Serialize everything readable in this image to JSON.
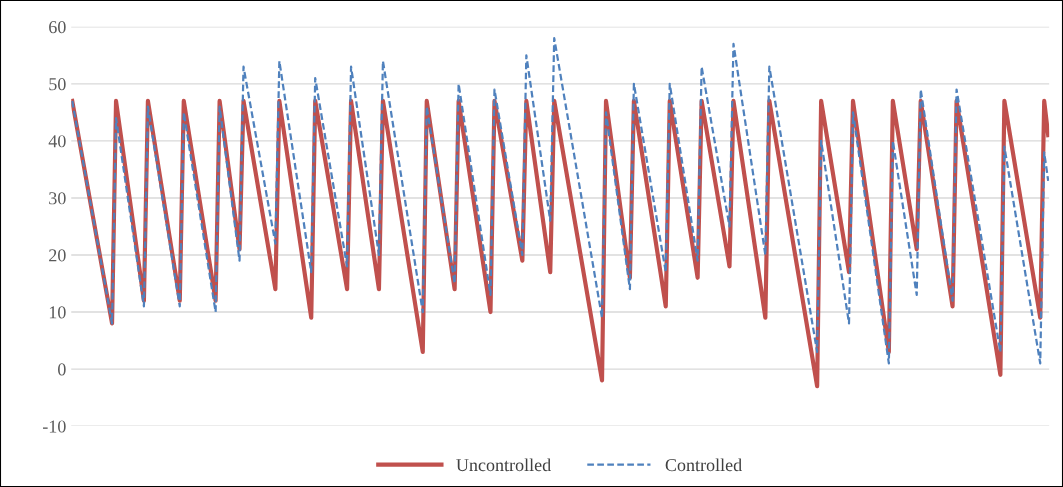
{
  "chart_data": {
    "type": "line",
    "ylim": [
      -10,
      60
    ],
    "yticks": [
      -10,
      0,
      10,
      20,
      30,
      40,
      50,
      60
    ],
    "tick_labels": "y",
    "grid": "y",
    "legend": "bottom",
    "marker": "none",
    "categories": [
      null,
      null,
      null,
      null,
      null,
      null,
      null,
      null,
      null,
      null,
      null,
      null,
      null,
      null,
      null,
      null,
      null,
      null,
      null,
      null,
      null,
      null,
      null,
      null,
      null,
      null,
      null,
      null,
      null,
      null,
      null,
      null,
      null,
      null,
      null,
      null,
      null,
      null,
      null,
      null,
      null,
      null,
      null,
      null,
      null,
      null,
      null,
      null,
      null,
      null,
      null,
      null,
      null,
      null,
      null,
      null,
      null,
      null,
      null,
      null,
      null,
      null,
      null,
      null,
      null,
      null,
      null,
      null,
      null,
      null,
      null,
      null,
      null,
      null,
      null,
      null,
      null,
      null,
      null,
      null,
      null,
      null,
      null,
      null,
      null,
      null,
      null,
      null,
      null,
      null,
      null,
      null,
      null,
      null,
      null,
      null,
      null,
      null,
      null,
      null,
      null,
      null,
      null,
      null,
      null,
      null,
      null,
      null,
      null,
      null,
      null,
      null,
      null,
      null,
      null,
      null,
      null,
      null,
      null,
      null,
      null,
      null,
      null,
      null,
      null,
      null,
      null,
      null,
      null,
      null,
      null,
      null,
      null,
      null,
      null,
      null,
      null,
      null,
      null,
      null,
      null,
      null,
      null,
      null,
      null,
      null,
      null,
      null,
      null,
      null,
      null,
      null,
      null,
      null,
      null,
      null,
      null,
      null,
      null,
      null,
      null,
      null,
      null,
      null,
      null,
      null,
      null,
      null,
      null,
      null,
      null,
      null,
      null,
      null,
      null,
      null,
      null,
      null,
      null,
      null,
      null,
      null,
      null,
      null,
      null,
      null,
      null,
      null,
      null,
      null,
      null,
      null,
      null,
      null,
      null,
      null,
      null,
      null,
      null,
      null,
      null,
      null,
      null,
      null,
      null,
      null,
      null,
      null,
      null,
      null,
      null,
      null,
      null,
      null,
      null,
      null,
      null,
      null,
      null,
      null,
      null,
      null,
      null,
      null,
      null,
      null,
      null,
      null,
      null,
      null,
      null,
      null,
      null,
      null,
      null,
      null,
      null,
      null,
      null,
      null,
      null,
      null,
      null,
      null,
      null,
      null
    ],
    "series": [
      {
        "name": "Uncontrolled",
        "color": "#c0504d",
        "line_style": "solid",
        "values": [
          47,
          null,
          null,
          null,
          null,
          null,
          null,
          null,
          null,
          null,
          8,
          47,
          null,
          null,
          null,
          null,
          null,
          null,
          12,
          47,
          null,
          null,
          null,
          null,
          null,
          null,
          null,
          12,
          47,
          null,
          null,
          null,
          null,
          null,
          null,
          null,
          12,
          47,
          null,
          null,
          null,
          null,
          21,
          47,
          null,
          null,
          null,
          null,
          null,
          null,
          null,
          14,
          47,
          null,
          null,
          null,
          null,
          null,
          null,
          null,
          9,
          47,
          null,
          null,
          null,
          null,
          null,
          null,
          null,
          14,
          47,
          null,
          null,
          null,
          null,
          null,
          null,
          14,
          47,
          null,
          null,
          null,
          null,
          null,
          null,
          null,
          null,
          null,
          3,
          47,
          null,
          null,
          null,
          null,
          null,
          null,
          14,
          47,
          null,
          null,
          null,
          null,
          null,
          null,
          null,
          10,
          47,
          null,
          null,
          null,
          null,
          null,
          null,
          19,
          47,
          null,
          null,
          null,
          null,
          null,
          17,
          47,
          null,
          null,
          null,
          null,
          null,
          null,
          null,
          null,
          null,
          null,
          null,
          -2,
          47,
          null,
          null,
          null,
          null,
          null,
          16,
          47,
          null,
          null,
          null,
          null,
          null,
          null,
          null,
          11,
          47,
          null,
          null,
          null,
          null,
          null,
          null,
          16,
          47,
          null,
          null,
          null,
          null,
          null,
          null,
          18,
          47,
          null,
          null,
          null,
          null,
          null,
          null,
          null,
          9,
          47,
          null,
          null,
          null,
          null,
          null,
          null,
          null,
          null,
          null,
          null,
          null,
          -3,
          47,
          null,
          null,
          null,
          null,
          null,
          null,
          17,
          47,
          null,
          null,
          null,
          null,
          null,
          null,
          null,
          null,
          3,
          47,
          null,
          null,
          null,
          null,
          null,
          21,
          47,
          null,
          null,
          null,
          null,
          null,
          null,
          null,
          11,
          47,
          null,
          null,
          null,
          null,
          null,
          null,
          null,
          null,
          null,
          null,
          -1,
          47,
          null,
          null,
          null,
          null,
          null,
          null,
          null,
          null,
          9,
          47,
          41
        ]
      },
      {
        "name": "Controlled",
        "color": "#4f81bd",
        "line_style": "dashed",
        "values": [
          47,
          null,
          null,
          null,
          null,
          null,
          null,
          null,
          null,
          null,
          8,
          44,
          null,
          null,
          null,
          null,
          null,
          null,
          11,
          46,
          null,
          null,
          null,
          null,
          null,
          null,
          null,
          11,
          45,
          null,
          null,
          null,
          null,
          null,
          null,
          null,
          10,
          46,
          null,
          null,
          null,
          null,
          19,
          53,
          null,
          null,
          null,
          null,
          null,
          null,
          null,
          22,
          54,
          null,
          null,
          null,
          null,
          null,
          null,
          null,
          17,
          51,
          null,
          null,
          null,
          null,
          null,
          null,
          null,
          18,
          53,
          null,
          null,
          null,
          null,
          null,
          null,
          20,
          54,
          null,
          null,
          null,
          null,
          null,
          null,
          null,
          null,
          null,
          10,
          46,
          null,
          null,
          null,
          null,
          null,
          null,
          15,
          50,
          null,
          null,
          null,
          null,
          null,
          null,
          null,
          13,
          49,
          null,
          null,
          null,
          null,
          null,
          null,
          20,
          55,
          null,
          null,
          null,
          null,
          null,
          26,
          58,
          null,
          null,
          null,
          null,
          null,
          null,
          null,
          null,
          null,
          null,
          null,
          9,
          45,
          null,
          null,
          null,
          null,
          null,
          14,
          50,
          null,
          null,
          null,
          null,
          null,
          null,
          null,
          17,
          50,
          null,
          null,
          null,
          null,
          null,
          null,
          19,
          53,
          null,
          null,
          null,
          null,
          null,
          null,
          25,
          57,
          null,
          null,
          null,
          null,
          null,
          null,
          null,
          20,
          53,
          null,
          null,
          null,
          null,
          null,
          null,
          null,
          null,
          null,
          null,
          null,
          3,
          40,
          null,
          null,
          null,
          null,
          null,
          null,
          8,
          45,
          null,
          null,
          null,
          null,
          null,
          null,
          null,
          null,
          1,
          40,
          null,
          null,
          null,
          null,
          null,
          13,
          49,
          null,
          null,
          null,
          null,
          null,
          null,
          null,
          12,
          49,
          null,
          null,
          null,
          null,
          null,
          null,
          null,
          null,
          null,
          null,
          3,
          39,
          null,
          null,
          null,
          null,
          null,
          null,
          null,
          null,
          1,
          38,
          33
        ]
      }
    ]
  }
}
